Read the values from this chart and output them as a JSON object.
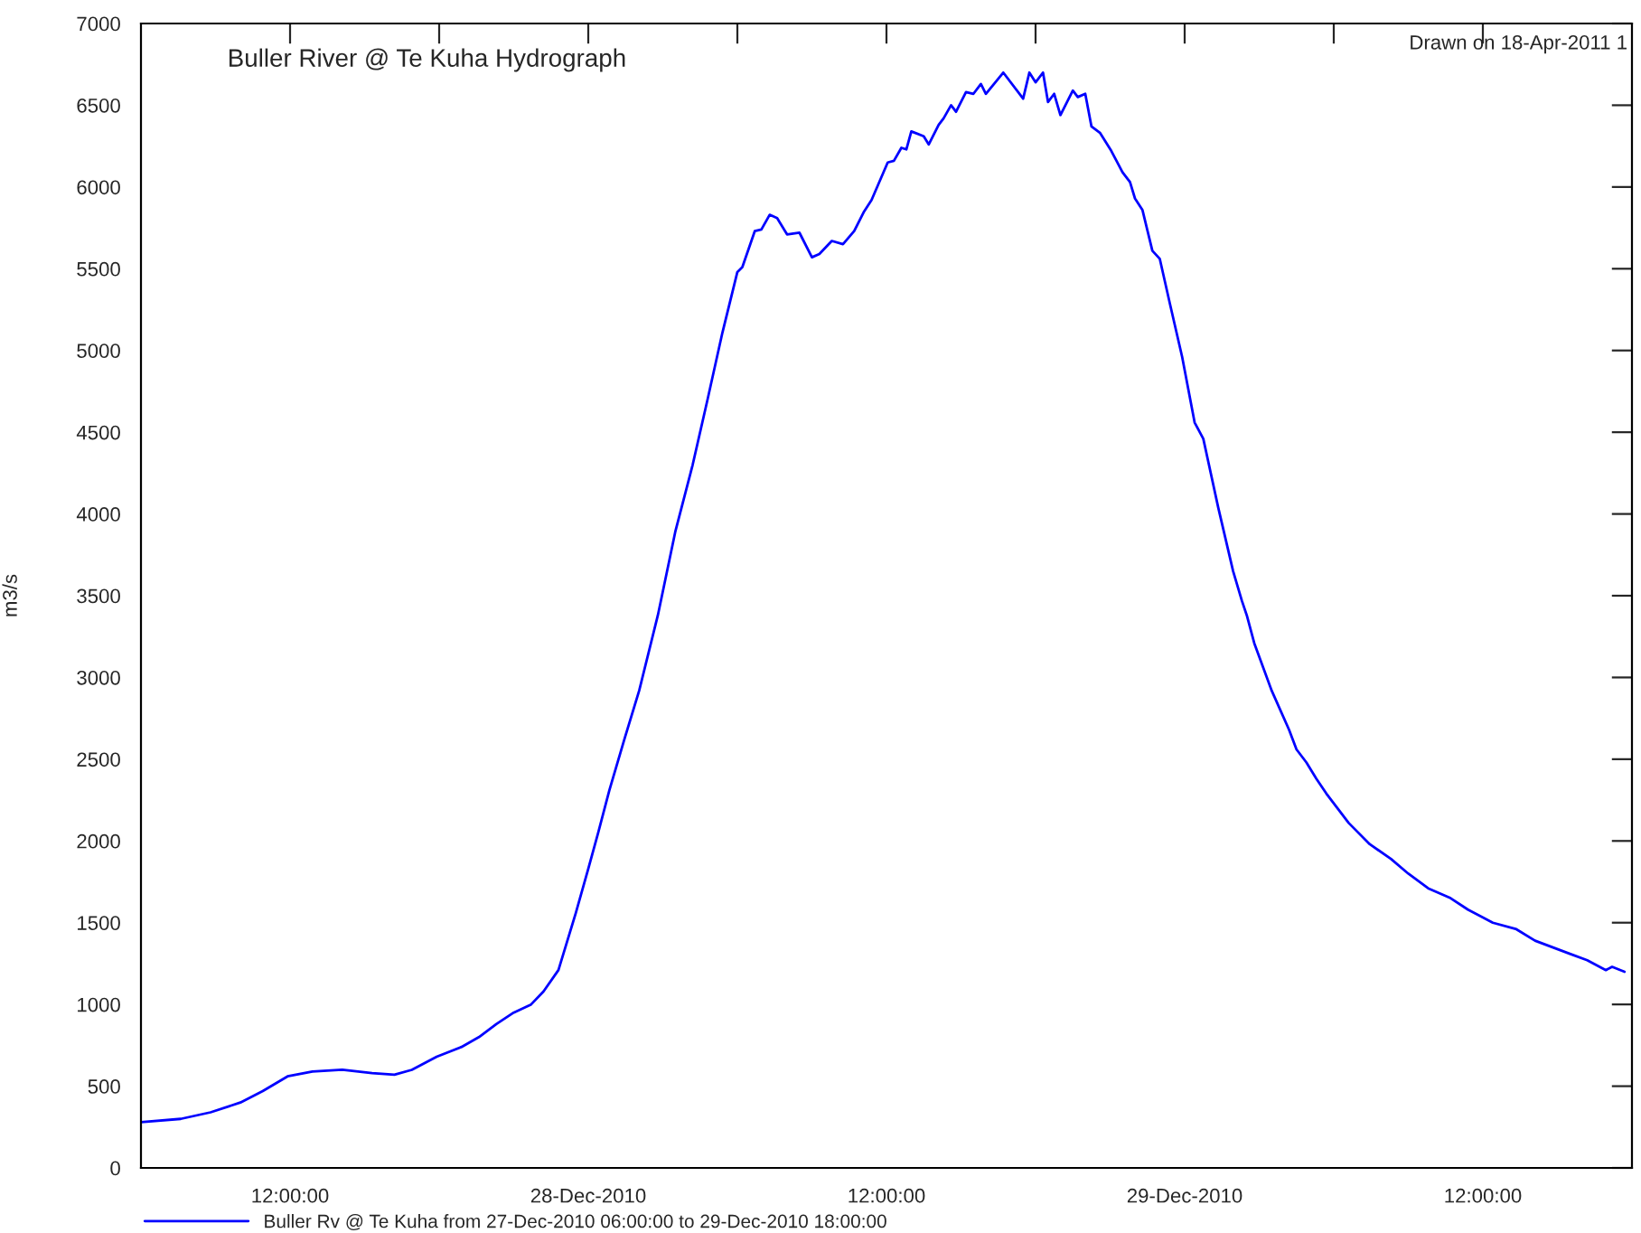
{
  "chart_data": {
    "type": "line",
    "title": "Buller River @ Te Kuha Hydrograph",
    "ylabel": "m3/s",
    "annotations": [
      "Drawn on 18-Apr-2011 1"
    ],
    "xlim": [
      "2010-12-27T06:00",
      "2010-12-29T18:00"
    ],
    "xticks": [
      {
        "value": "2010-12-27T12:00",
        "label": "12:00:00"
      },
      {
        "value": "2010-12-27T18:00",
        "label": null
      },
      {
        "value": "2010-12-28T00:00",
        "label": "28-Dec-2010"
      },
      {
        "value": "2010-12-28T06:00",
        "label": null
      },
      {
        "value": "2010-12-28T12:00",
        "label": "12:00:00"
      },
      {
        "value": "2010-12-28T18:00",
        "label": null
      },
      {
        "value": "2010-12-29T00:00",
        "label": "29-Dec-2010"
      },
      {
        "value": "2010-12-29T06:00",
        "label": null
      },
      {
        "value": "2010-12-29T12:00",
        "label": "12:00:00"
      }
    ],
    "ylim": [
      0,
      7000
    ],
    "yticks": [
      0,
      500,
      1000,
      1500,
      2000,
      2500,
      3000,
      3500,
      4000,
      4500,
      5000,
      5500,
      6000,
      6500,
      7000
    ],
    "grid": false,
    "legend": "bottom",
    "marker": "none",
    "line_style": "solid",
    "series": [
      {
        "name": "Buller Rv @ Te Kuha from 27-Dec-2010 06:00:00 to 29-Dec-2010 18:00:00",
        "color": "#0000ff",
        "x": [
          "2010-12-27T06:00",
          "2010-12-27T07:36",
          "2010-12-27T08:48",
          "2010-12-27T10:00",
          "2010-12-27T10:54",
          "2010-12-27T11:54",
          "2010-12-27T12:54",
          "2010-12-27T14:06",
          "2010-12-27T15:18",
          "2010-12-27T16:12",
          "2010-12-27T16:54",
          "2010-12-27T17:54",
          "2010-12-27T18:54",
          "2010-12-27T19:36",
          "2010-12-27T20:18",
          "2010-12-27T21:00",
          "2010-12-27T21:42",
          "2010-12-27T22:12",
          "2010-12-27T22:48",
          "2010-12-27T23:30",
          "2010-12-28T00:00",
          "2010-12-28T00:24",
          "2010-12-28T00:51",
          "2010-12-28T01:27",
          "2010-12-28T02:03",
          "2010-12-28T02:48",
          "2010-12-28T03:30",
          "2010-12-28T04:12",
          "2010-12-28T04:48",
          "2010-12-28T05:24",
          "2010-12-28T06:00",
          "2010-12-28T06:12",
          "2010-12-28T06:42",
          "2010-12-28T06:58",
          "2010-12-28T07:18",
          "2010-12-28T07:36",
          "2010-12-28T08:00",
          "2010-12-28T08:30",
          "2010-12-28T09:00",
          "2010-12-28T09:18",
          "2010-12-28T09:48",
          "2010-12-28T10:15",
          "2010-12-28T10:42",
          "2010-12-28T11:06",
          "2010-12-28T11:24",
          "2010-12-28T12:03",
          "2010-12-28T12:18",
          "2010-12-28T12:36",
          "2010-12-28T12:48",
          "2010-12-28T13:00",
          "2010-12-28T13:30",
          "2010-12-28T13:42",
          "2010-12-28T14:06",
          "2010-12-28T14:18",
          "2010-12-28T14:36",
          "2010-12-28T14:48",
          "2010-12-28T15:12",
          "2010-12-28T15:30",
          "2010-12-28T15:48",
          "2010-12-28T16:00",
          "2010-12-28T16:42",
          "2010-12-28T17:30",
          "2010-12-28T17:45",
          "2010-12-28T18:00",
          "2010-12-28T18:18",
          "2010-12-28T18:30",
          "2010-12-28T18:45",
          "2010-12-28T19:00",
          "2010-12-28T19:30",
          "2010-12-28T19:42",
          "2010-12-28T20:00",
          "2010-12-28T20:15",
          "2010-12-28T20:36",
          "2010-12-28T21:03",
          "2010-12-28T21:30",
          "2010-12-28T21:48",
          "2010-12-28T22:00",
          "2010-12-28T22:18",
          "2010-12-28T22:42",
          "2010-12-28T23:00",
          "2010-12-28T23:24",
          "2010-12-28T23:54",
          "2010-12-29T00:24",
          "2010-12-29T00:45",
          "2010-12-29T01:21",
          "2010-12-29T01:57",
          "2010-12-29T02:18",
          "2010-12-29T02:30",
          "2010-12-29T02:48",
          "2010-12-29T03:30",
          "2010-12-29T04:12",
          "2010-12-29T04:30",
          "2010-12-29T04:54",
          "2010-12-29T05:18",
          "2010-12-29T05:42",
          "2010-12-29T06:36",
          "2010-12-29T07:27",
          "2010-12-29T08:18",
          "2010-12-29T09:00",
          "2010-12-29T09:48",
          "2010-12-29T10:42",
          "2010-12-29T11:24",
          "2010-12-29T12:24",
          "2010-12-29T13:21",
          "2010-12-29T14:06",
          "2010-12-29T14:48",
          "2010-12-29T15:30",
          "2010-12-29T16:12",
          "2010-12-29T16:57",
          "2010-12-29T17:12",
          "2010-12-29T17:42"
        ],
        "values": [
          280,
          300,
          340,
          400,
          470,
          560,
          590,
          600,
          580,
          570,
          600,
          680,
          740,
          800,
          880,
          950,
          1000,
          1080,
          1210,
          1560,
          1830,
          2050,
          2310,
          2620,
          2920,
          3380,
          3890,
          4300,
          4700,
          5110,
          5480,
          5510,
          5730,
          5740,
          5830,
          5810,
          5710,
          5720,
          5570,
          5590,
          5670,
          5650,
          5730,
          5850,
          5920,
          6150,
          6160,
          6240,
          6230,
          6340,
          6310,
          6260,
          6380,
          6420,
          6500,
          6460,
          6580,
          6570,
          6630,
          6570,
          6700,
          6540,
          6700,
          6640,
          6700,
          6520,
          6570,
          6440,
          6590,
          6550,
          6570,
          6370,
          6330,
          6220,
          6090,
          6030,
          5930,
          5860,
          5610,
          5560,
          5290,
          4960,
          4560,
          4460,
          4040,
          3650,
          3470,
          3380,
          3210,
          2920,
          2680,
          2560,
          2480,
          2380,
          2290,
          2110,
          1980,
          1890,
          1800,
          1710,
          1650,
          1580,
          1500,
          1460,
          1390,
          1350,
          1310,
          1270,
          1210,
          1230,
          1200
        ]
      }
    ]
  }
}
